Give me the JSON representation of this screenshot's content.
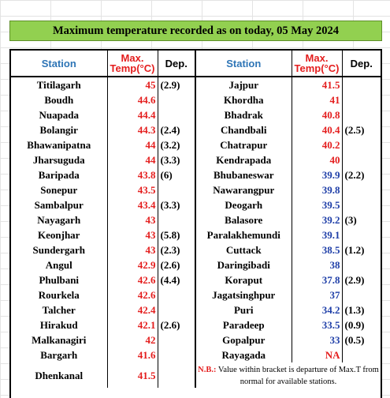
{
  "title": "Maximum temperature recorded as on today, 05 May 2024",
  "headers": {
    "station": "Station",
    "max_line1": "Max.",
    "max_line2": "Temp(°C)",
    "dep": "Dep."
  },
  "colors": {
    "banner": "#92d050",
    "header_station": "#2e75b6",
    "header_max": "#e41e1e",
    "temp_red": "#e41e1e",
    "temp_blue": "#1f3fa8"
  },
  "left_column": [
    {
      "station": "Titilagarh",
      "temp": "45",
      "dep": "(2.9)"
    },
    {
      "station": "Boudh",
      "temp": "44.6",
      "dep": ""
    },
    {
      "station": "Nuapada",
      "temp": "44.4",
      "dep": ""
    },
    {
      "station": "Bolangir",
      "temp": "44.3",
      "dep": "(2.4)"
    },
    {
      "station": "Bhawanipatna",
      "temp": "44",
      "dep": "(3.2)"
    },
    {
      "station": "Jharsuguda",
      "temp": "44",
      "dep": "(3.3)"
    },
    {
      "station": "Baripada",
      "temp": "43.8",
      "dep": "(6)"
    },
    {
      "station": "Sonepur",
      "temp": "43.5",
      "dep": ""
    },
    {
      "station": "Sambalpur",
      "temp": "43.4",
      "dep": "(3.3)"
    },
    {
      "station": "Nayagarh",
      "temp": "43",
      "dep": ""
    },
    {
      "station": "Keonjhar",
      "temp": "43",
      "dep": "(5.8)"
    },
    {
      "station": "Sundergarh",
      "temp": "43",
      "dep": "(2.3)"
    },
    {
      "station": "Angul",
      "temp": "42.9",
      "dep": "(2.6)"
    },
    {
      "station": "Phulbani",
      "temp": "42.6",
      "dep": "(4.4)"
    },
    {
      "station": "Rourkela",
      "temp": "42.6",
      "dep": ""
    },
    {
      "station": "Talcher",
      "temp": "42.4",
      "dep": ""
    },
    {
      "station": "Hirakud",
      "temp": "42.1",
      "dep": "(2.6)"
    },
    {
      "station": "Malkanagiri",
      "temp": "42",
      "dep": ""
    },
    {
      "station": "Bargarh",
      "temp": "41.6",
      "dep": ""
    },
    {
      "station": "Dhenkanal",
      "temp": "41.5",
      "dep": ""
    }
  ],
  "right_column": [
    {
      "station": "Jajpur",
      "temp": "41.5",
      "dep": "",
      "color": "red"
    },
    {
      "station": "Khordha",
      "temp": "41",
      "dep": "",
      "color": "red"
    },
    {
      "station": "Bhadrak",
      "temp": "40.8",
      "dep": "",
      "color": "red"
    },
    {
      "station": "Chandbali",
      "temp": "40.4",
      "dep": "(2.5)",
      "color": "red"
    },
    {
      "station": "Chatrapur",
      "temp": "40.2",
      "dep": "",
      "color": "red"
    },
    {
      "station": "Kendrapada",
      "temp": "40",
      "dep": "",
      "color": "red"
    },
    {
      "station": "Bhubaneswar",
      "temp": "39.9",
      "dep": "(2.2)",
      "color": "blue"
    },
    {
      "station": "Nawarangpur",
      "temp": "39.8",
      "dep": "",
      "color": "blue"
    },
    {
      "station": "Deogarh",
      "temp": "39.5",
      "dep": "",
      "color": "blue"
    },
    {
      "station": "Balasore",
      "temp": "39.2",
      "dep": "(3)",
      "color": "blue"
    },
    {
      "station": "Paralakhemundi",
      "temp": "39.1",
      "dep": "",
      "color": "blue"
    },
    {
      "station": "Cuttack",
      "temp": "38.5",
      "dep": "(1.2)",
      "color": "blue"
    },
    {
      "station": "Daringibadi",
      "temp": "38",
      "dep": "",
      "color": "blue"
    },
    {
      "station": "Koraput",
      "temp": "37.8",
      "dep": "(2.9)",
      "color": "blue"
    },
    {
      "station": "Jagatsinghpur",
      "temp": "37",
      "dep": "",
      "color": "blue"
    },
    {
      "station": "Puri",
      "temp": "34.2",
      "dep": "(1.3)",
      "color": "blue"
    },
    {
      "station": "Paradeep",
      "temp": "33.5",
      "dep": "(0.9)",
      "color": "blue"
    },
    {
      "station": "Gopalpur",
      "temp": "33",
      "dep": "(0.5)",
      "color": "blue"
    },
    {
      "station": "Rayagada",
      "temp": "NA",
      "dep": "",
      "color": "red"
    }
  ],
  "note": {
    "label": "N.B.:",
    "text": "Value within bracket is departure of Max.T from normal for available stations."
  }
}
